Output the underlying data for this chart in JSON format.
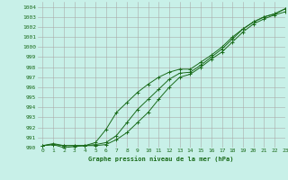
{
  "title": "Graphe pression niveau de la mer (hPa)",
  "bg_color": "#c8f0e8",
  "grid_color": "#aaaaaa",
  "line_color": "#1a6b1a",
  "xlim": [
    -0.5,
    23
  ],
  "ylim": [
    990,
    1004.5
  ],
  "xticks": [
    0,
    1,
    2,
    3,
    4,
    5,
    6,
    7,
    8,
    9,
    10,
    11,
    12,
    13,
    14,
    15,
    16,
    17,
    18,
    19,
    20,
    21,
    22,
    23
  ],
  "yticks": [
    990,
    991,
    992,
    993,
    994,
    995,
    996,
    997,
    998,
    999,
    1000,
    1001,
    1002,
    1003,
    1004
  ],
  "series1": [
    990.2,
    990.3,
    990.2,
    990.2,
    990.2,
    990.3,
    990.5,
    991.2,
    992.5,
    993.8,
    994.8,
    995.8,
    996.8,
    997.4,
    997.5,
    998.2,
    999.0,
    999.8,
    1000.8,
    1001.8,
    1002.5,
    1003.0,
    1003.3,
    1003.8
  ],
  "series2": [
    990.2,
    990.3,
    990.0,
    990.1,
    990.2,
    990.2,
    990.3,
    990.8,
    991.5,
    992.5,
    993.5,
    994.8,
    996.0,
    997.0,
    997.3,
    998.0,
    998.8,
    999.5,
    1000.5,
    1001.5,
    1002.3,
    1002.8,
    1003.2,
    1003.5
  ],
  "series3": [
    990.2,
    990.4,
    990.2,
    990.2,
    990.2,
    990.5,
    991.8,
    993.5,
    994.5,
    995.5,
    996.3,
    997.0,
    997.5,
    997.8,
    997.8,
    998.5,
    999.2,
    1000.0,
    1001.0,
    1001.8,
    1002.5,
    1003.0,
    1003.3,
    1003.8
  ]
}
